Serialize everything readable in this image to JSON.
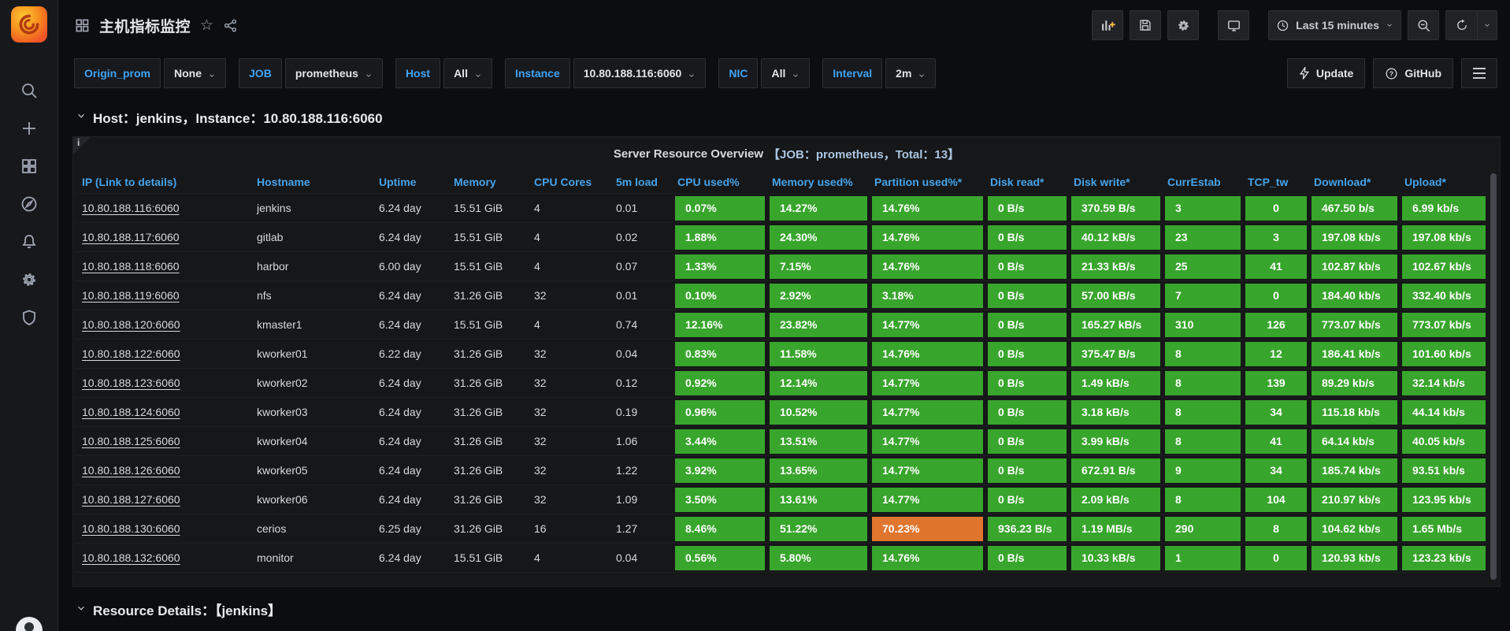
{
  "app": {
    "title": "主机指标监控"
  },
  "topbar": {
    "time_range": "Last 15 minutes",
    "icons": [
      "add-panel-icon",
      "save-dashboard-icon",
      "dashboard-settings-icon",
      "tv-mode-icon",
      "time-range-clock-icon",
      "zoom-out-icon",
      "refresh-icon"
    ]
  },
  "variables": [
    {
      "label": "Origin_prom",
      "value": "None"
    },
    {
      "label": "JOB",
      "value": "prometheus"
    },
    {
      "label": "Host",
      "value": "All"
    },
    {
      "label": "Instance",
      "value": "10.80.188.116:6060"
    },
    {
      "label": "NIC",
      "value": "All"
    },
    {
      "label": "Interval",
      "value": "2m"
    }
  ],
  "actions": {
    "update": "Update",
    "github": "GitHub"
  },
  "rows_headers": {
    "first": "Host：jenkins，Instance：10.80.188.116:6060",
    "second": "Resource Details：【jenkins】"
  },
  "panel": {
    "title_main": "Server Resource Overview",
    "title_detail": "【JOB：prometheus，Total：13】",
    "info_badge": "i",
    "columns": [
      "IP (Link to details)",
      "Hostname",
      "Uptime",
      "Memory",
      "CPU Cores",
      "5m load",
      "CPU used%",
      "Memory used%",
      "Partition used%*",
      "Disk read*",
      "Disk write*",
      "CurrEstab",
      "TCP_tw",
      "Download*",
      "Upload*"
    ],
    "column_keys": [
      "ip",
      "hostname",
      "uptime",
      "memory",
      "cpu_cores",
      "load_5m",
      "cpu_used",
      "mem_used",
      "partition_used",
      "disk_read",
      "disk_write",
      "currestab",
      "tcp_tw",
      "download",
      "upload"
    ],
    "colored_from_col": 6,
    "colors": {
      "ok": "#38a52c",
      "warn": "#e0752d",
      "header_blue": "#46a3e9"
    },
    "warn_cells": [
      {
        "row": 11,
        "col": 8
      }
    ],
    "rows": [
      [
        "10.80.188.116:6060",
        "jenkins",
        "6.24 day",
        "15.51 GiB",
        "4",
        "0.01",
        "0.07%",
        "14.27%",
        "14.76%",
        "0 B/s",
        "370.59 B/s",
        "3",
        "0",
        "467.50 b/s",
        "6.99 kb/s"
      ],
      [
        "10.80.188.117:6060",
        "gitlab",
        "6.24 day",
        "15.51 GiB",
        "4",
        "0.02",
        "1.88%",
        "24.30%",
        "14.76%",
        "0 B/s",
        "40.12 kB/s",
        "23",
        "3",
        "197.08 kb/s",
        "197.08 kb/s"
      ],
      [
        "10.80.188.118:6060",
        "harbor",
        "6.00 day",
        "15.51 GiB",
        "4",
        "0.07",
        "1.33%",
        "7.15%",
        "14.76%",
        "0 B/s",
        "21.33 kB/s",
        "25",
        "41",
        "102.87 kb/s",
        "102.67 kb/s"
      ],
      [
        "10.80.188.119:6060",
        "nfs",
        "6.24 day",
        "31.26 GiB",
        "32",
        "0.01",
        "0.10%",
        "2.92%",
        "3.18%",
        "0 B/s",
        "57.00 kB/s",
        "7",
        "0",
        "184.40 kb/s",
        "332.40 kb/s"
      ],
      [
        "10.80.188.120:6060",
        "kmaster1",
        "6.24 day",
        "15.51 GiB",
        "4",
        "0.74",
        "12.16%",
        "23.82%",
        "14.77%",
        "0 B/s",
        "165.27 kB/s",
        "310",
        "126",
        "773.07 kb/s",
        "773.07 kb/s"
      ],
      [
        "10.80.188.122:6060",
        "kworker01",
        "6.22 day",
        "31.26 GiB",
        "32",
        "0.04",
        "0.83%",
        "11.58%",
        "14.76%",
        "0 B/s",
        "375.47 B/s",
        "8",
        "12",
        "186.41 kb/s",
        "101.60 kb/s"
      ],
      [
        "10.80.188.123:6060",
        "kworker02",
        "6.24 day",
        "31.26 GiB",
        "32",
        "0.12",
        "0.92%",
        "12.14%",
        "14.77%",
        "0 B/s",
        "1.49 kB/s",
        "8",
        "139",
        "89.29 kb/s",
        "32.14 kb/s"
      ],
      [
        "10.80.188.124:6060",
        "kworker03",
        "6.24 day",
        "31.26 GiB",
        "32",
        "0.19",
        "0.96%",
        "10.52%",
        "14.77%",
        "0 B/s",
        "3.18 kB/s",
        "8",
        "34",
        "115.18 kb/s",
        "44.14 kb/s"
      ],
      [
        "10.80.188.125:6060",
        "kworker04",
        "6.24 day",
        "31.26 GiB",
        "32",
        "1.06",
        "3.44%",
        "13.51%",
        "14.77%",
        "0 B/s",
        "3.99 kB/s",
        "8",
        "41",
        "64.14 kb/s",
        "40.05 kb/s"
      ],
      [
        "10.80.188.126:6060",
        "kworker05",
        "6.24 day",
        "31.26 GiB",
        "32",
        "1.22",
        "3.92%",
        "13.65%",
        "14.77%",
        "0 B/s",
        "672.91 B/s",
        "9",
        "34",
        "185.74 kb/s",
        "93.51 kb/s"
      ],
      [
        "10.80.188.127:6060",
        "kworker06",
        "6.24 day",
        "31.26 GiB",
        "32",
        "1.09",
        "3.50%",
        "13.61%",
        "14.77%",
        "0 B/s",
        "2.09 kB/s",
        "8",
        "104",
        "210.97 kb/s",
        "123.95 kb/s"
      ],
      [
        "10.80.188.130:6060",
        "cerios",
        "6.25 day",
        "31.26 GiB",
        "16",
        "1.27",
        "8.46%",
        "51.22%",
        "70.23%",
        "936.23 B/s",
        "1.19 MB/s",
        "290",
        "8",
        "104.62 kb/s",
        "1.65 Mb/s"
      ],
      [
        "10.80.188.132:6060",
        "monitor",
        "6.24 day",
        "15.51 GiB",
        "4",
        "0.04",
        "0.56%",
        "5.80%",
        "14.76%",
        "0 B/s",
        "10.33 kB/s",
        "1",
        "0",
        "120.93 kb/s",
        "123.23 kb/s"
      ]
    ]
  }
}
